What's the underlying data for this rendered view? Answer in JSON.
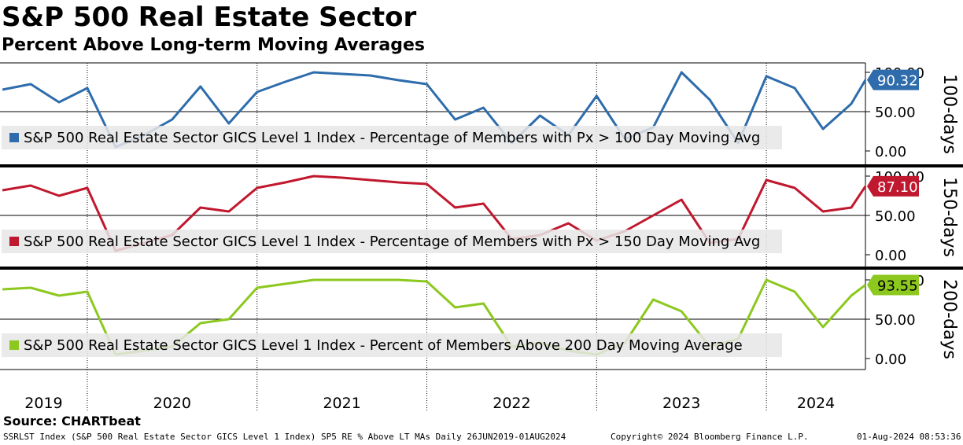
{
  "title": "S&P 500 Real Estate Sector",
  "subtitle": "Percent Above Long-term Moving Averages",
  "source": "Source: CHARTbeat",
  "footer": {
    "description": "SSRLST Index (S&P 500 Real Estate Sector GICS Level 1 Index) SP5 RE % Above LT MAs  Daily 26JUN2019-01AUG2024",
    "copyright": "Copyright© 2024 Bloomberg Finance L.P.",
    "timestamp": "01-Aug-2024 08:53:36"
  },
  "x_axis": {
    "tick_labels": [
      "2019",
      "2020",
      "2021",
      "2022",
      "2023",
      "2024"
    ]
  },
  "chart_data": [
    {
      "type": "line",
      "panel_label": "100-days",
      "legend": "S&P 500 Real Estate Sector GICS Level 1 Index - Percentage of Members with Px > 100 Day Moving Avg",
      "last_value": 90.32,
      "last_value_label": "90.32",
      "color": "#2E6CAB",
      "ylim": [
        0,
        100
      ],
      "ytick_labels": [
        "100.00",
        "50.00",
        "0.00"
      ],
      "x": [
        "2019-07",
        "2019-09",
        "2019-11",
        "2020-01",
        "2020-03",
        "2020-05",
        "2020-07",
        "2020-09",
        "2020-11",
        "2021-01",
        "2021-03",
        "2021-05",
        "2021-07",
        "2021-09",
        "2021-11",
        "2022-01",
        "2022-03",
        "2022-05",
        "2022-07",
        "2022-09",
        "2022-11",
        "2023-01",
        "2023-03",
        "2023-05",
        "2023-07",
        "2023-09",
        "2023-11",
        "2024-01",
        "2024-03",
        "2024-05",
        "2024-07",
        "2024-08"
      ],
      "values": [
        78,
        85,
        62,
        80,
        5,
        20,
        40,
        82,
        35,
        75,
        88,
        100,
        98,
        96,
        90,
        85,
        40,
        55,
        10,
        45,
        20,
        70,
        15,
        30,
        100,
        65,
        10,
        95,
        80,
        28,
        60,
        90.32
      ]
    },
    {
      "type": "line",
      "panel_label": "150-days",
      "legend": "S&P 500 Real Estate Sector GICS Level 1 Index - Percentage of Members with Px > 150 Day Moving Avg",
      "last_value": 87.1,
      "last_value_label": "87.10",
      "color": "#C0182E",
      "ylim": [
        0,
        100
      ],
      "ytick_labels": [
        "100.00",
        "50.00",
        "0.00"
      ],
      "x": [
        "2019-07",
        "2019-09",
        "2019-11",
        "2020-01",
        "2020-03",
        "2020-05",
        "2020-07",
        "2020-09",
        "2020-11",
        "2021-01",
        "2021-03",
        "2021-05",
        "2021-07",
        "2021-09",
        "2021-11",
        "2022-01",
        "2022-03",
        "2022-05",
        "2022-07",
        "2022-09",
        "2022-11",
        "2023-01",
        "2023-03",
        "2023-05",
        "2023-07",
        "2023-09",
        "2023-11",
        "2024-01",
        "2024-03",
        "2024-05",
        "2024-07",
        "2024-08"
      ],
      "values": [
        82,
        88,
        75,
        85,
        5,
        15,
        25,
        60,
        55,
        85,
        92,
        100,
        98,
        95,
        92,
        90,
        60,
        65,
        20,
        25,
        40,
        18,
        30,
        50,
        70,
        15,
        20,
        95,
        85,
        55,
        60,
        87.1
      ]
    },
    {
      "type": "line",
      "panel_label": "200-days",
      "legend": "S&P 500 Real Estate Sector GICS Level 1 Index - Percent of Members Above 200 Day Moving Average",
      "last_value": 93.55,
      "last_value_label": "93.55",
      "color": "#8CC81E",
      "ylim": [
        0,
        100
      ],
      "ytick_labels": [
        "100.00",
        "50.00",
        "0.00"
      ],
      "x": [
        "2019-07",
        "2019-09",
        "2019-11",
        "2020-01",
        "2020-03",
        "2020-05",
        "2020-07",
        "2020-09",
        "2020-11",
        "2021-01",
        "2021-03",
        "2021-05",
        "2021-07",
        "2021-09",
        "2021-11",
        "2022-01",
        "2022-03",
        "2022-05",
        "2022-07",
        "2022-09",
        "2022-11",
        "2023-01",
        "2023-03",
        "2023-05",
        "2023-07",
        "2023-09",
        "2023-11",
        "2024-01",
        "2024-03",
        "2024-05",
        "2024-07",
        "2024-08"
      ],
      "values": [
        88,
        90,
        80,
        85,
        5,
        10,
        15,
        45,
        50,
        90,
        95,
        100,
        100,
        100,
        100,
        98,
        65,
        70,
        15,
        20,
        10,
        5,
        20,
        75,
        60,
        15,
        25,
        100,
        85,
        40,
        80,
        93.55
      ]
    }
  ]
}
